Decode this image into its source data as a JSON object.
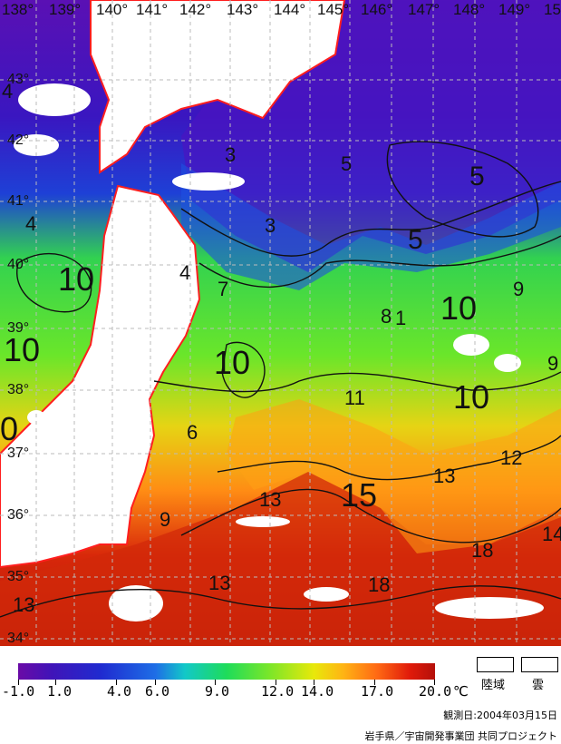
{
  "map": {
    "longitude_labels": [
      "138°",
      "139°",
      "140°",
      "141°",
      "142°",
      "143°",
      "144°",
      "145°",
      "146°",
      "147°",
      "148°",
      "149°",
      "15"
    ],
    "latitude_labels": [
      "43°",
      "42°",
      "41°",
      "40°",
      "39°",
      "38°",
      "37°",
      "36°",
      "35°",
      "34°"
    ],
    "isotherm_labels": [
      "4",
      "3",
      "4",
      "5",
      "5",
      "3",
      "4",
      "5",
      "10",
      "10",
      "7",
      "8",
      "1",
      "10",
      "9",
      "10",
      "9",
      "10",
      "10",
      "0",
      "11",
      "6",
      "13",
      "12",
      "13",
      "15",
      "9",
      "18",
      "14",
      "13",
      "18",
      "13"
    ],
    "colors": {
      "land": "#ffffff",
      "coastline": "#ff1e1e",
      "contour": "#111111",
      "grid": "#bbbbbb",
      "cloud": "#ffffff"
    }
  },
  "legend": {
    "tick_labels": [
      "-1.0",
      "1.0",
      "4.0",
      "6.0",
      "9.0",
      "12.0",
      "14.0",
      "17.0",
      "20.0"
    ],
    "unit": "℃",
    "land_label": "陸域",
    "cloud_label": "雲",
    "observation_date": "観測日:2004年03月15日",
    "credit": "岩手県／宇宙開発事業団 共同プロジェクト"
  }
}
